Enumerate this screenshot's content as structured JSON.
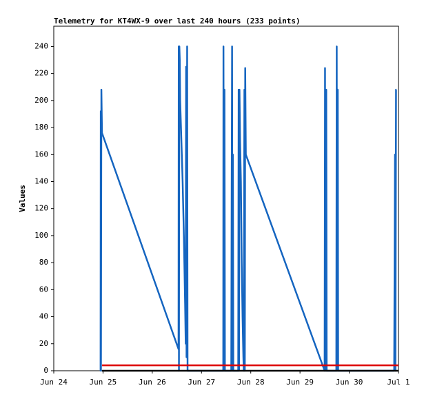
{
  "chart_data": {
    "type": "line",
    "title": "Telemetry for KT4WX-9 over last 240 hours (233 points)",
    "y_label": "Values",
    "xlim": [
      0,
      168
    ],
    "xticks": [
      {
        "value": 0,
        "label": "Jun 24"
      },
      {
        "value": 24,
        "label": "Jun 25"
      },
      {
        "value": 48,
        "label": "Jun 26"
      },
      {
        "value": 72,
        "label": "Jun 27"
      },
      {
        "value": 96,
        "label": "Jun 28"
      },
      {
        "value": 120,
        "label": "Jun 29"
      },
      {
        "value": 144,
        "label": "Jun 30"
      },
      {
        "value": 168,
        "label": "Jul 1"
      }
    ],
    "ylim": [
      0,
      255
    ],
    "yticks": [
      0,
      20,
      40,
      60,
      80,
      100,
      120,
      140,
      160,
      180,
      200,
      220,
      240
    ],
    "grid": false,
    "series": [
      {
        "color": "#1565c0",
        "x": [
          22.8,
          22.9,
          23.0,
          23.2,
          23.5,
          60.8,
          60.9,
          61.0,
          61.2,
          61.4,
          61.6,
          62.0,
          62.4,
          62.8,
          63.4,
          64.0,
          64.3,
          64.5,
          64.7,
          65.0,
          65.2,
          82.6,
          82.7,
          83.0,
          83.2,
          83.4,
          86.5,
          86.7,
          86.9,
          87.1,
          87.3,
          87.5,
          89.9,
          90.1,
          90.3,
          90.5,
          90.8,
          91.2,
          91.6,
          92.0,
          92.4,
          92.6,
          92.9,
          93.1,
          93.3,
          93.6,
          132.0,
          132.2,
          132.4,
          132.8,
          133.0,
          137.7,
          137.9,
          138.1,
          138.4,
          138.6,
          165.9,
          166.1,
          166.3,
          166.5,
          166.8,
          167.0
        ],
        "values": [
          0,
          192,
          0,
          208,
          176,
          16,
          240,
          0,
          240,
          230,
          200,
          180,
          160,
          140,
          100,
          50,
          20,
          225,
          10,
          240,
          0,
          0,
          240,
          0,
          208,
          0,
          0,
          136,
          240,
          0,
          160,
          0,
          0,
          208,
          0,
          208,
          170,
          140,
          80,
          40,
          10,
          0,
          208,
          0,
          224,
          160,
          0,
          224,
          0,
          208,
          0,
          0,
          240,
          0,
          208,
          0,
          0,
          80,
          160,
          0,
          208,
          208
        ]
      },
      {
        "color": "#dd0000",
        "x": [
          23.5,
          168
        ],
        "values": [
          4,
          4
        ]
      },
      {
        "color": "#000000",
        "x": [
          23.5,
          168
        ],
        "values": [
          0,
          0
        ]
      }
    ]
  }
}
